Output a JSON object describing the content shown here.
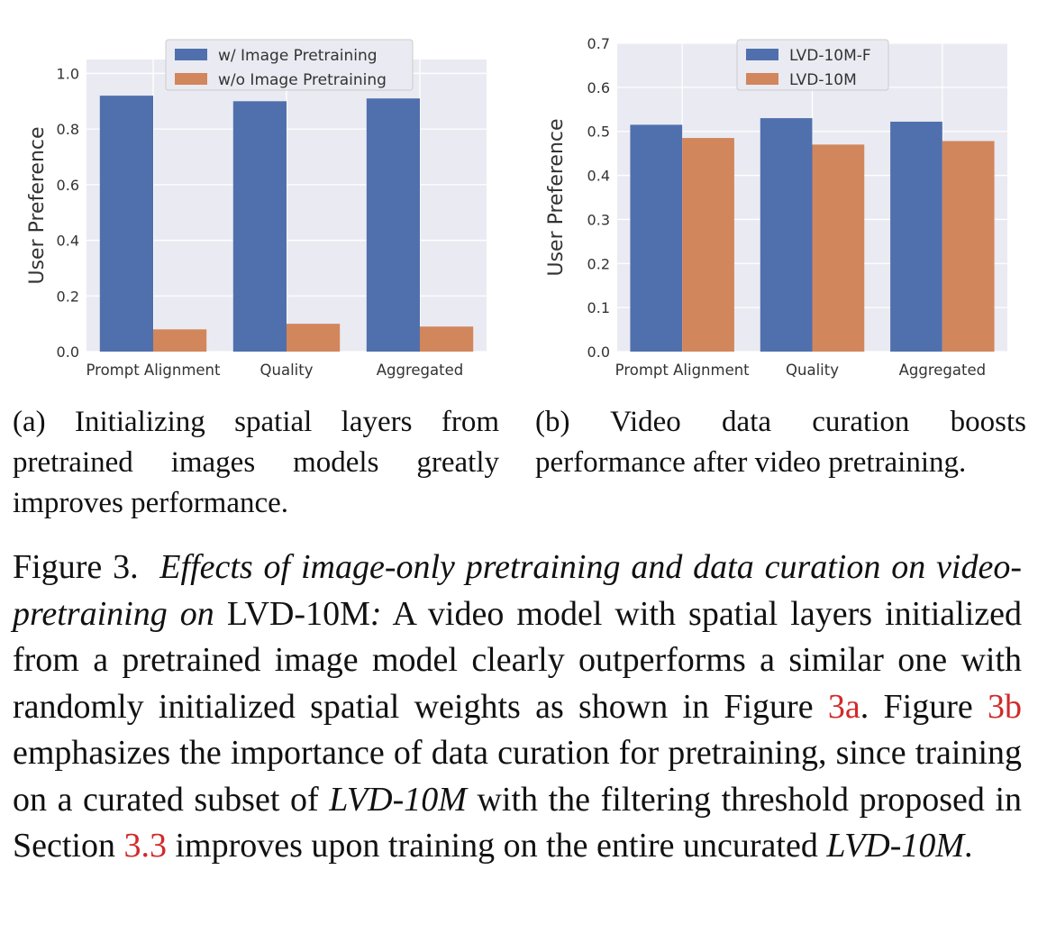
{
  "chart_data": [
    {
      "type": "bar",
      "categories": [
        "Prompt Alignment",
        "Quality",
        "Aggregated"
      ],
      "series": [
        {
          "name": "w/ Image Pretraining",
          "values": [
            0.92,
            0.9,
            0.91
          ],
          "color": "#5070ad"
        },
        {
          "name": "w/o Image Pretraining",
          "values": [
            0.08,
            0.1,
            0.09
          ],
          "color": "#d2865b"
        }
      ],
      "ylabel": "User Preference",
      "ylim": [
        0,
        1.05
      ],
      "yticks": [
        "0.0",
        "0.2",
        "0.4",
        "0.6",
        "0.8",
        "1.0"
      ],
      "legend": "top-center",
      "grid": true,
      "background": "#eaeaf2"
    },
    {
      "type": "bar",
      "categories": [
        "Prompt Alignment",
        "Quality",
        "Aggregated"
      ],
      "series": [
        {
          "name": "LVD-10M-F",
          "values": [
            0.515,
            0.53,
            0.522
          ],
          "color": "#5070ad"
        },
        {
          "name": "LVD-10M",
          "values": [
            0.485,
            0.47,
            0.478
          ],
          "color": "#d2865b"
        }
      ],
      "ylabel": "User Preference",
      "ylim": [
        0,
        0.7
      ],
      "yticks": [
        "0.0",
        "0.1",
        "0.2",
        "0.3",
        "0.4",
        "0.5",
        "0.6",
        "0.7"
      ],
      "legend": "top-center",
      "grid": true,
      "background": "#eaeaf2"
    }
  ],
  "captions": {
    "a": "(a) Initializing spatial layers from pretrained images models greatly improves performance.",
    "b": "(b) Video data curation boosts performance after video pretraining."
  },
  "figure_caption": {
    "label": "Figure 3.",
    "title_italic": "Effects of image-only pretraining and data curation on video-pretraining on",
    "title_roman": "LVD-10M",
    "colon": ":",
    "body_1": "A video model with spatial layers initialized from a pretrained image model clearly outperforms a similar one with randomly initialized spatial weights as shown in Figure",
    "ref_a": "3a",
    "body_2": ". Figure",
    "ref_b": "3b",
    "body_3": "emphasizes the importance of data curation for pretraining, since training on a curated subset of",
    "italic_1": "LVD-10M",
    "body_4": "with the filtering threshold proposed in Section",
    "ref_section": "3.3",
    "body_5": "improves upon training on the entire uncurated",
    "italic_2": "LVD-10M",
    "end": "."
  }
}
